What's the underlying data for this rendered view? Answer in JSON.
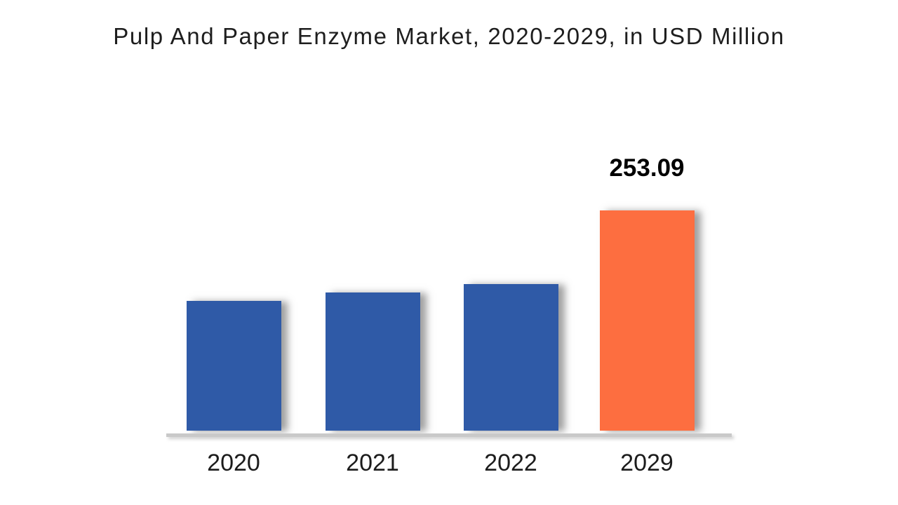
{
  "title": "Pulp And Paper Enzyme Market, 2020-2029, in USD Million",
  "colors": {
    "bar_default": "#2F5AA7",
    "bar_highlight": "#FD6E40",
    "axis_line": "#C9C9C9",
    "title_text": "#1E1E1E",
    "value_label_text": "#000000",
    "tick_text": "#1C1C1C"
  },
  "chart_data": {
    "type": "bar",
    "title": "Pulp And Paper Enzyme Market, 2020-2029, in USD Million",
    "categories": [
      "2020",
      "2021",
      "2022",
      "2029"
    ],
    "values": [
      149,
      158.5,
      168.2,
      253.09
    ],
    "data_labels": [
      "",
      "",
      "",
      "253.09"
    ],
    "highlight_index": 3,
    "xlabel": "",
    "ylabel": "USD Million",
    "ylim": [
      0,
      280
    ],
    "legend": false,
    "grid": false,
    "axis_style": "baseline-only"
  }
}
